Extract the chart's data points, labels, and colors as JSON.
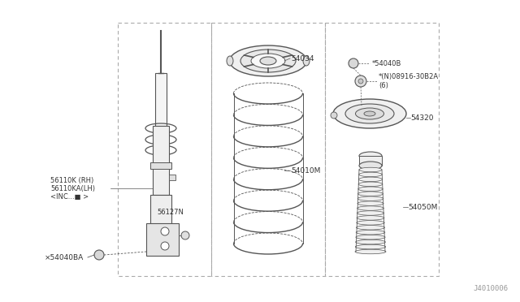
{
  "bg_color": "#ffffff",
  "line_color": "#555555",
  "text_color": "#333333",
  "diagram_color": "#555555",
  "fig_width": 6.4,
  "fig_height": 3.72,
  "dpi": 100,
  "watermark": "J4010006",
  "parts": {
    "shock_absorber_label1": "56110K (RH)",
    "shock_absorber_label2": "56110KA(LH)",
    "shock_absorber_label3": "<INC...■ >",
    "bracket_label": "56127N",
    "bolt_bottom_label": "×54040BA",
    "spring_seat_label": "54034",
    "coil_spring_label": "54010M",
    "bolt_top_label": "*54040B",
    "nut_label": "*(N)08916-30B2A\n(6)",
    "strut_mount_label": "54320",
    "dust_boot_label": "54050M"
  }
}
